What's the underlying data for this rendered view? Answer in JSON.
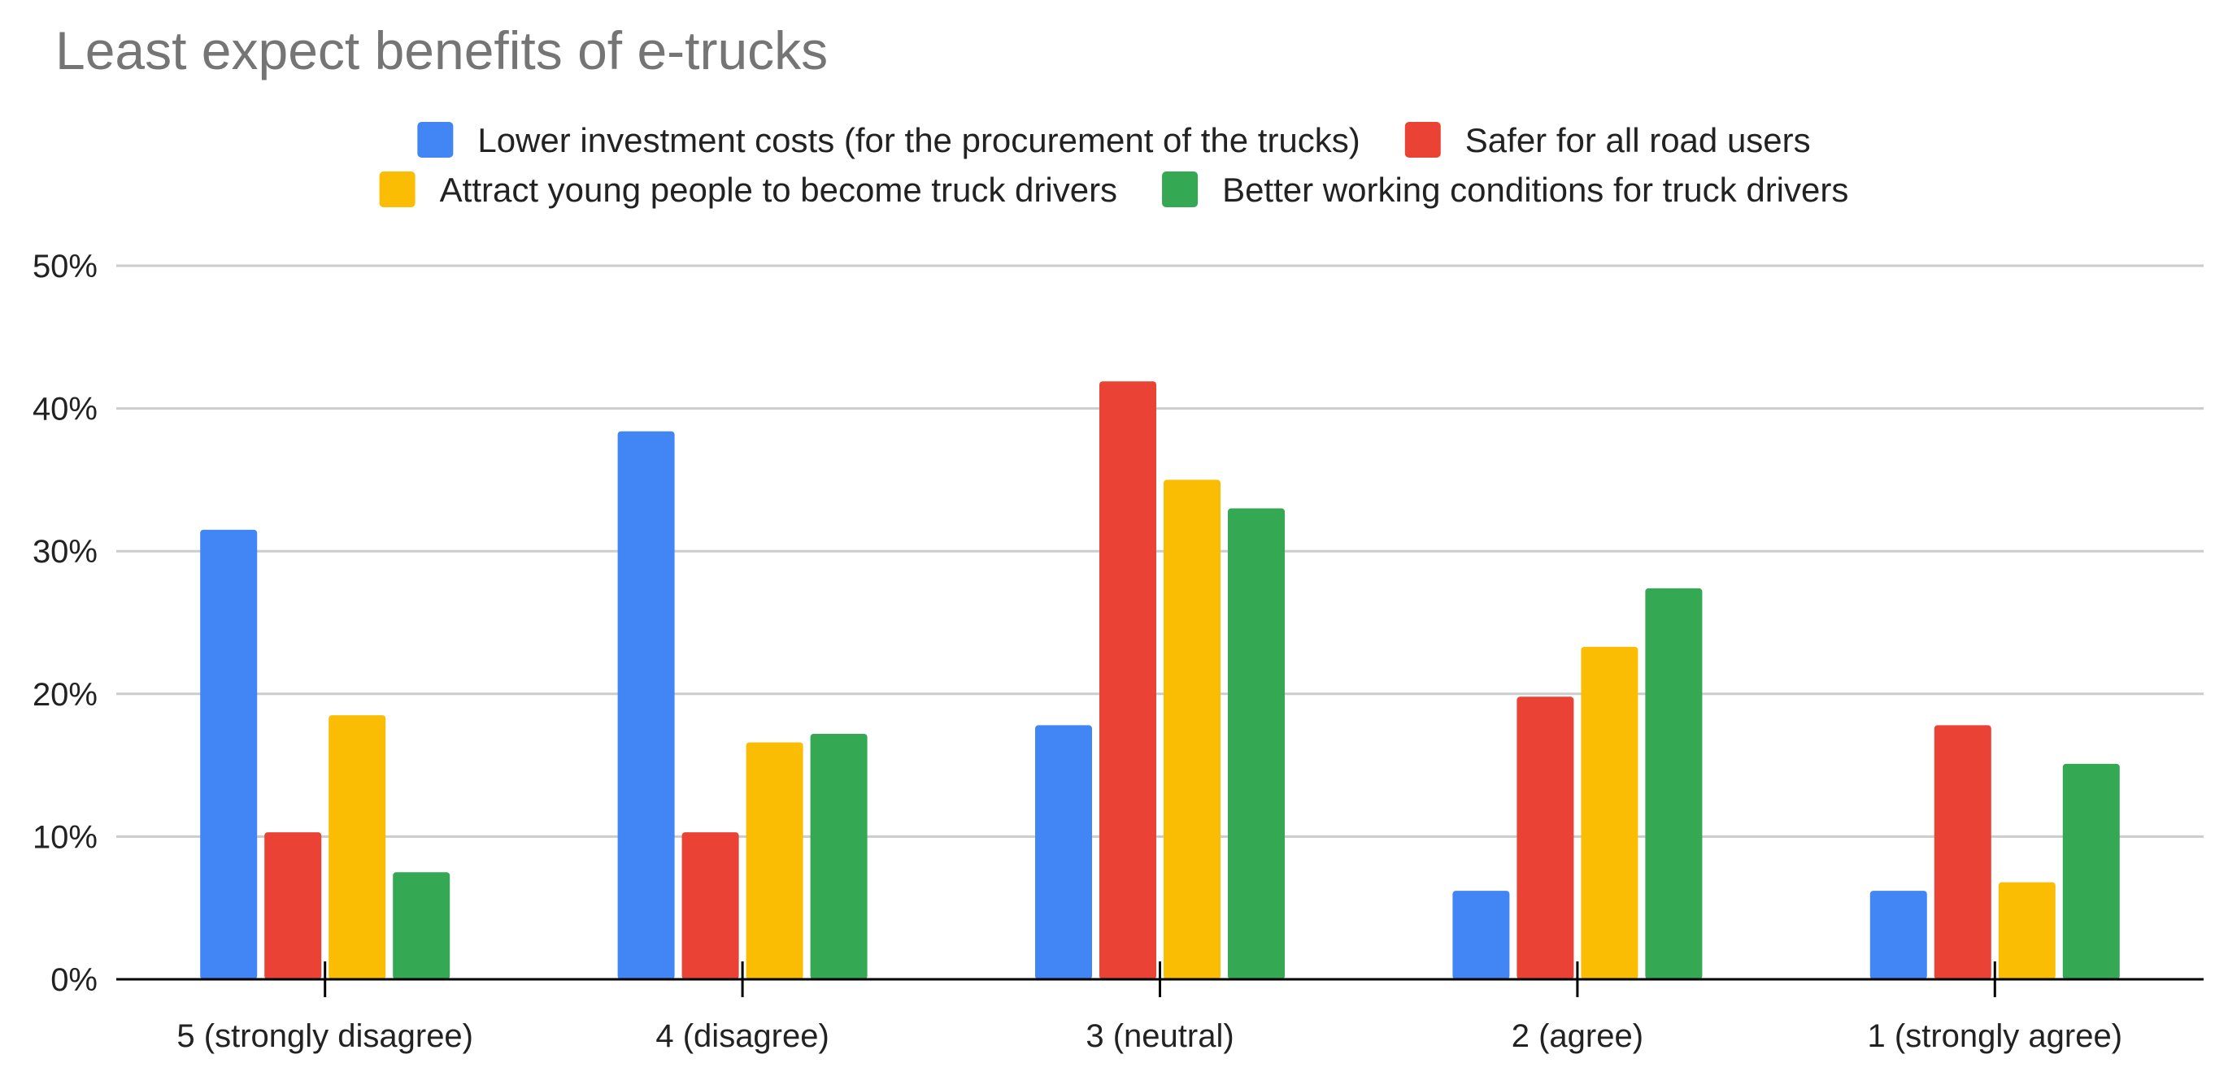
{
  "chart_data": {
    "type": "bar",
    "title": "Least expect benefits of e-trucks",
    "xlabel": "",
    "ylabel": "",
    "ylim": [
      0,
      50
    ],
    "yticks": [
      "0%",
      "10%",
      "20%",
      "30%",
      "40%",
      "50%"
    ],
    "legend_position": "top",
    "grid": true,
    "categories": [
      "5 (strongly disagree)",
      "4 (disagree)",
      "3 (neutral)",
      "2 (agree)",
      "1 (strongly agree)"
    ],
    "series": [
      {
        "name": "Lower investment costs (for the procurement of the trucks)",
        "color": "#4285f4",
        "values": [
          31.5,
          38.4,
          17.8,
          6.2,
          6.2
        ]
      },
      {
        "name": "Safer for all road users",
        "color": "#ea4335",
        "values": [
          10.3,
          10.3,
          41.9,
          19.8,
          17.8
        ]
      },
      {
        "name": "Attract young people to become truck drivers",
        "color": "#fbbc04",
        "values": [
          18.5,
          16.6,
          35.0,
          23.3,
          6.8
        ]
      },
      {
        "name": "Better working conditions for truck drivers",
        "color": "#34a853",
        "values": [
          7.5,
          17.2,
          33.0,
          27.4,
          15.1
        ]
      }
    ]
  }
}
